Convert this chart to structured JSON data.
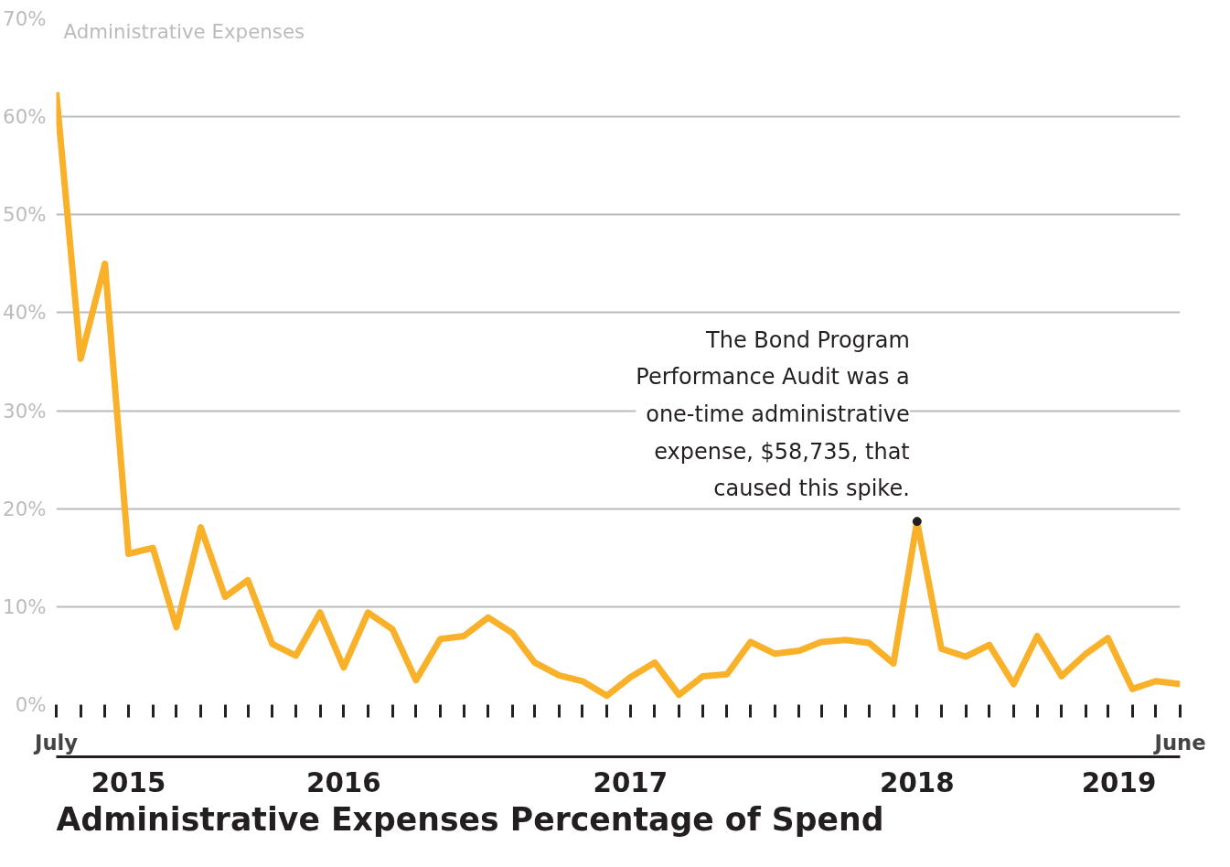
{
  "chart_data": {
    "type": "line",
    "title": "Administrative Expenses Percentage of Spend",
    "ylabel": "Administrative Expenses",
    "x": [
      "2015-07",
      "2015-08",
      "2015-09",
      "2015-10",
      "2015-11",
      "2015-12",
      "2016-01",
      "2016-02",
      "2016-03",
      "2016-04",
      "2016-05",
      "2016-06",
      "2016-07",
      "2016-08",
      "2016-09",
      "2016-10",
      "2016-11",
      "2016-12",
      "2017-01",
      "2017-02",
      "2017-03",
      "2017-04",
      "2017-05",
      "2017-06",
      "2017-07",
      "2017-08",
      "2017-09",
      "2017-10",
      "2017-11",
      "2017-12",
      "2018-01",
      "2018-02",
      "2018-03",
      "2018-04",
      "2018-05",
      "2018-06",
      "2018-07",
      "2018-08",
      "2018-09",
      "2018-10",
      "2018-11",
      "2018-12",
      "2019-01",
      "2019-02",
      "2019-03",
      "2019-04",
      "2019-05",
      "2019-06"
    ],
    "series": [
      {
        "color": "#f9b12a",
        "values": [
          62.5,
          35.3,
          45.0,
          15.4,
          16.0,
          7.9,
          18.1,
          11.0,
          12.7,
          6.2,
          5.0,
          9.4,
          3.8,
          9.4,
          7.7,
          2.5,
          6.7,
          7.0,
          8.9,
          7.3,
          4.3,
          3.0,
          2.4,
          0.9,
          2.8,
          4.3,
          1.0,
          2.9,
          3.1,
          6.4,
          5.2,
          5.5,
          6.4,
          6.6,
          6.3,
          4.2,
          18.7,
          5.7,
          4.9,
          6.1,
          2.1,
          7.0,
          2.9,
          5.2,
          6.8,
          1.6,
          2.4,
          2.1
        ]
      }
    ],
    "xlim": [
      "2015-07",
      "2019-06"
    ],
    "xticks": [
      {
        "value": "2015-07",
        "label": "July"
      },
      {
        "value": "2015-08",
        "label": null
      },
      {
        "value": "2015-09",
        "label": null
      },
      {
        "value": "2015-10",
        "label": null
      },
      {
        "value": "2015-11",
        "label": null
      },
      {
        "value": "2015-12",
        "label": null
      },
      {
        "value": "2016-01",
        "label": null
      },
      {
        "value": "2016-02",
        "label": null
      },
      {
        "value": "2016-03",
        "label": null
      },
      {
        "value": "2016-04",
        "label": null
      },
      {
        "value": "2016-05",
        "label": null
      },
      {
        "value": "2016-06",
        "label": null
      },
      {
        "value": "2016-07",
        "label": null
      },
      {
        "value": "2016-08",
        "label": null
      },
      {
        "value": "2016-09",
        "label": null
      },
      {
        "value": "2016-10",
        "label": null
      },
      {
        "value": "2016-11",
        "label": null
      },
      {
        "value": "2016-12",
        "label": null
      },
      {
        "value": "2017-01",
        "label": null
      },
      {
        "value": "2017-02",
        "label": null
      },
      {
        "value": "2017-03",
        "label": null
      },
      {
        "value": "2017-04",
        "label": null
      },
      {
        "value": "2017-05",
        "label": null
      },
      {
        "value": "2017-06",
        "label": null
      },
      {
        "value": "2017-07",
        "label": null
      },
      {
        "value": "2017-08",
        "label": null
      },
      {
        "value": "2017-09",
        "label": null
      },
      {
        "value": "2017-10",
        "label": null
      },
      {
        "value": "2017-11",
        "label": null
      },
      {
        "value": "2017-12",
        "label": null
      },
      {
        "value": "2018-01",
        "label": null
      },
      {
        "value": "2018-02",
        "label": null
      },
      {
        "value": "2018-03",
        "label": null
      },
      {
        "value": "2018-04",
        "label": null
      },
      {
        "value": "2018-05",
        "label": null
      },
      {
        "value": "2018-06",
        "label": null
      },
      {
        "value": "2018-07",
        "label": null
      },
      {
        "value": "2018-08",
        "label": null
      },
      {
        "value": "2018-09",
        "label": null
      },
      {
        "value": "2018-10",
        "label": null
      },
      {
        "value": "2018-11",
        "label": null
      },
      {
        "value": "2018-12",
        "label": null
      },
      {
        "value": "2019-01",
        "label": null
      },
      {
        "value": "2019-02",
        "label": null
      },
      {
        "value": "2019-03",
        "label": null
      },
      {
        "value": "2019-04",
        "label": null
      },
      {
        "value": "2019-05",
        "label": null
      },
      {
        "value": "2019-06",
        "label": "June"
      }
    ],
    "x2lim": [
      "2015-07",
      "2019-06"
    ],
    "x2ticks": [
      {
        "value": "2015-10",
        "label": "2015"
      },
      {
        "value": "2016-07",
        "label": "2016"
      },
      {
        "value": "2017-07",
        "label": "2017"
      },
      {
        "value": "2018-07",
        "label": "2018"
      },
      {
        "value": "2019-03-15",
        "label": "2019"
      }
    ],
    "ylim": [
      0,
      70
    ],
    "yticks": [
      {
        "value": 0,
        "label": "0%"
      },
      {
        "value": 10,
        "label": "10%"
      },
      {
        "value": 20,
        "label": "20%"
      },
      {
        "value": 30,
        "label": "30%"
      },
      {
        "value": 40,
        "label": "40%"
      },
      {
        "value": 50,
        "label": "50%"
      },
      {
        "value": 60,
        "label": "60%"
      },
      {
        "value": 70,
        "label": "70%"
      }
    ],
    "grid": "y",
    "marker": "none",
    "line_style": "solid",
    "annotations": [
      {
        "text": "The Bond Program\nPerformance Audit was a\none-time administrative\nexpense, $58,735, that\ncaused this spike.",
        "x": "2018-07",
        "y": 18.7
      }
    ]
  }
}
